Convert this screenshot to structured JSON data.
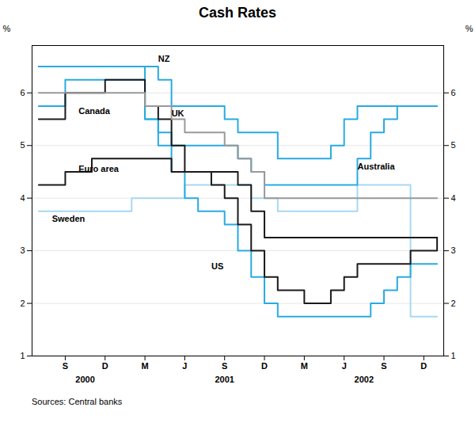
{
  "chart_data": {
    "type": "step",
    "title": "Cash Rates",
    "ylabel": "%",
    "y2label": "%",
    "caption": "Sources: Central banks",
    "x": [
      0,
      1,
      2,
      3,
      4,
      5,
      6,
      7,
      8,
      9,
      10,
      11,
      12,
      13,
      14,
      15,
      16,
      17,
      18,
      19,
      20,
      21,
      22,
      23,
      24,
      25,
      26,
      27,
      28,
      29,
      30
    ],
    "xlim": [
      -0.5,
      30.5
    ],
    "xticks": [
      {
        "value": 2,
        "label": "S"
      },
      {
        "value": 5,
        "label": "D"
      },
      {
        "value": 8,
        "label": "M"
      },
      {
        "value": 11,
        "label": "J"
      },
      {
        "value": 14,
        "label": "S"
      },
      {
        "value": 17,
        "label": "D"
      },
      {
        "value": 20,
        "label": "M"
      },
      {
        "value": 23,
        "label": "J"
      },
      {
        "value": 26,
        "label": "S"
      },
      {
        "value": 29,
        "label": "D"
      }
    ],
    "ylim": [
      1,
      6.9
    ],
    "yticks": [
      1,
      2,
      3,
      4,
      5,
      6
    ],
    "y2lim": [
      1,
      6.9
    ],
    "y2ticks": [
      1,
      2,
      3,
      4,
      5,
      6
    ],
    "grid": true,
    "series": [
      {
        "name": "Sweden",
        "color": "#a8d8f0",
        "values": [
          3.75,
          3.75,
          3.75,
          3.75,
          3.75,
          3.75,
          3.75,
          4.0,
          4.0,
          4.0,
          4.0,
          4.25,
          4.25,
          4.25,
          4.25,
          4.25,
          4.0,
          4.0,
          3.75,
          3.75,
          3.75,
          3.75,
          3.75,
          3.75,
          4.25,
          4.25,
          4.25,
          4.25,
          1.75,
          1.75,
          1.75
        ]
      },
      {
        "name": "NZ",
        "color": "#29aae1",
        "values": [
          6.5,
          6.5,
          6.5,
          6.5,
          6.5,
          6.5,
          6.5,
          6.5,
          6.5,
          6.25,
          5.75,
          5.75,
          5.75,
          5.75,
          5.5,
          5.25,
          5.25,
          5.25,
          4.75,
          4.75,
          4.75,
          4.75,
          5.0,
          5.5,
          5.75,
          5.75,
          5.75,
          5.75,
          5.75,
          5.75,
          5.75
        ]
      },
      {
        "name": "US",
        "color": "#29aae1",
        "values": [
          6.5,
          6.5,
          6.5,
          6.5,
          6.5,
          6.5,
          6.5,
          6.5,
          5.5,
          5.0,
          4.5,
          4.0,
          3.75,
          3.75,
          3.5,
          3.0,
          2.5,
          2.0,
          1.75,
          1.75,
          1.75,
          1.75,
          1.75,
          1.75,
          1.75,
          2.0,
          2.25,
          2.5,
          2.75,
          2.75,
          2.75
        ]
      },
      {
        "name": "Australia",
        "color": "#29aae1",
        "values": [
          5.75,
          5.75,
          6.25,
          6.25,
          6.25,
          6.25,
          6.25,
          6.25,
          5.5,
          5.25,
          5.0,
          5.0,
          5.0,
          5.0,
          5.0,
          4.75,
          4.5,
          4.25,
          4.25,
          4.25,
          4.25,
          4.25,
          4.25,
          4.25,
          4.75,
          5.25,
          5.5,
          5.75,
          5.75,
          5.75,
          5.75
        ]
      },
      {
        "name": "Euro area",
        "color": "#1a1a1a",
        "values": [
          4.25,
          4.25,
          4.5,
          4.5,
          4.75,
          4.75,
          4.75,
          4.75,
          4.75,
          4.75,
          4.5,
          4.5,
          4.5,
          4.5,
          4.5,
          4.25,
          3.75,
          3.25,
          3.25,
          3.25,
          3.25,
          3.25,
          3.25,
          3.25,
          3.25,
          3.25,
          3.25,
          3.25,
          3.25,
          3.25,
          3.25
        ]
      },
      {
        "name": "Canada",
        "color": "#1a1a1a",
        "values": [
          5.5,
          5.5,
          6.0,
          6.0,
          6.0,
          6.25,
          6.25,
          6.25,
          5.75,
          5.5,
          5.0,
          4.5,
          4.5,
          4.25,
          4.0,
          3.5,
          3.0,
          2.5,
          2.25,
          2.25,
          2.0,
          2.0,
          2.25,
          2.5,
          2.75,
          2.75,
          2.75,
          2.75,
          3.0,
          3.0,
          3.25
        ]
      },
      {
        "name": "UK",
        "color": "#999999",
        "values": [
          6.0,
          6.0,
          6.0,
          6.0,
          6.0,
          6.0,
          6.0,
          6.0,
          5.75,
          5.75,
          5.5,
          5.25,
          5.25,
          5.25,
          5.0,
          4.75,
          4.5,
          4.0,
          4.0,
          4.0,
          4.0,
          4.0,
          4.0,
          4.0,
          4.0,
          4.0,
          4.0,
          4.0,
          4.0,
          4.0,
          4.0
        ]
      }
    ],
    "annotations": [
      {
        "text": "Sweden",
        "x": 1,
        "y": 3.6
      },
      {
        "text": "NZ",
        "x": 9,
        "y": 6.65
      },
      {
        "text": "US",
        "x": 13,
        "y": 2.7
      },
      {
        "text": "Australia",
        "x": 24,
        "y": 4.6
      },
      {
        "text": "Euro area",
        "x": 3,
        "y": 4.55
      },
      {
        "text": "Canada",
        "x": 3,
        "y": 5.65
      },
      {
        "text": "UK",
        "x": 10,
        "y": 5.6
      },
      {
        "text": "2000",
        "x": 3.5
      },
      {
        "text": "2001",
        "x": 14.0
      },
      {
        "text": "2002",
        "x": 24.5
      }
    ]
  }
}
